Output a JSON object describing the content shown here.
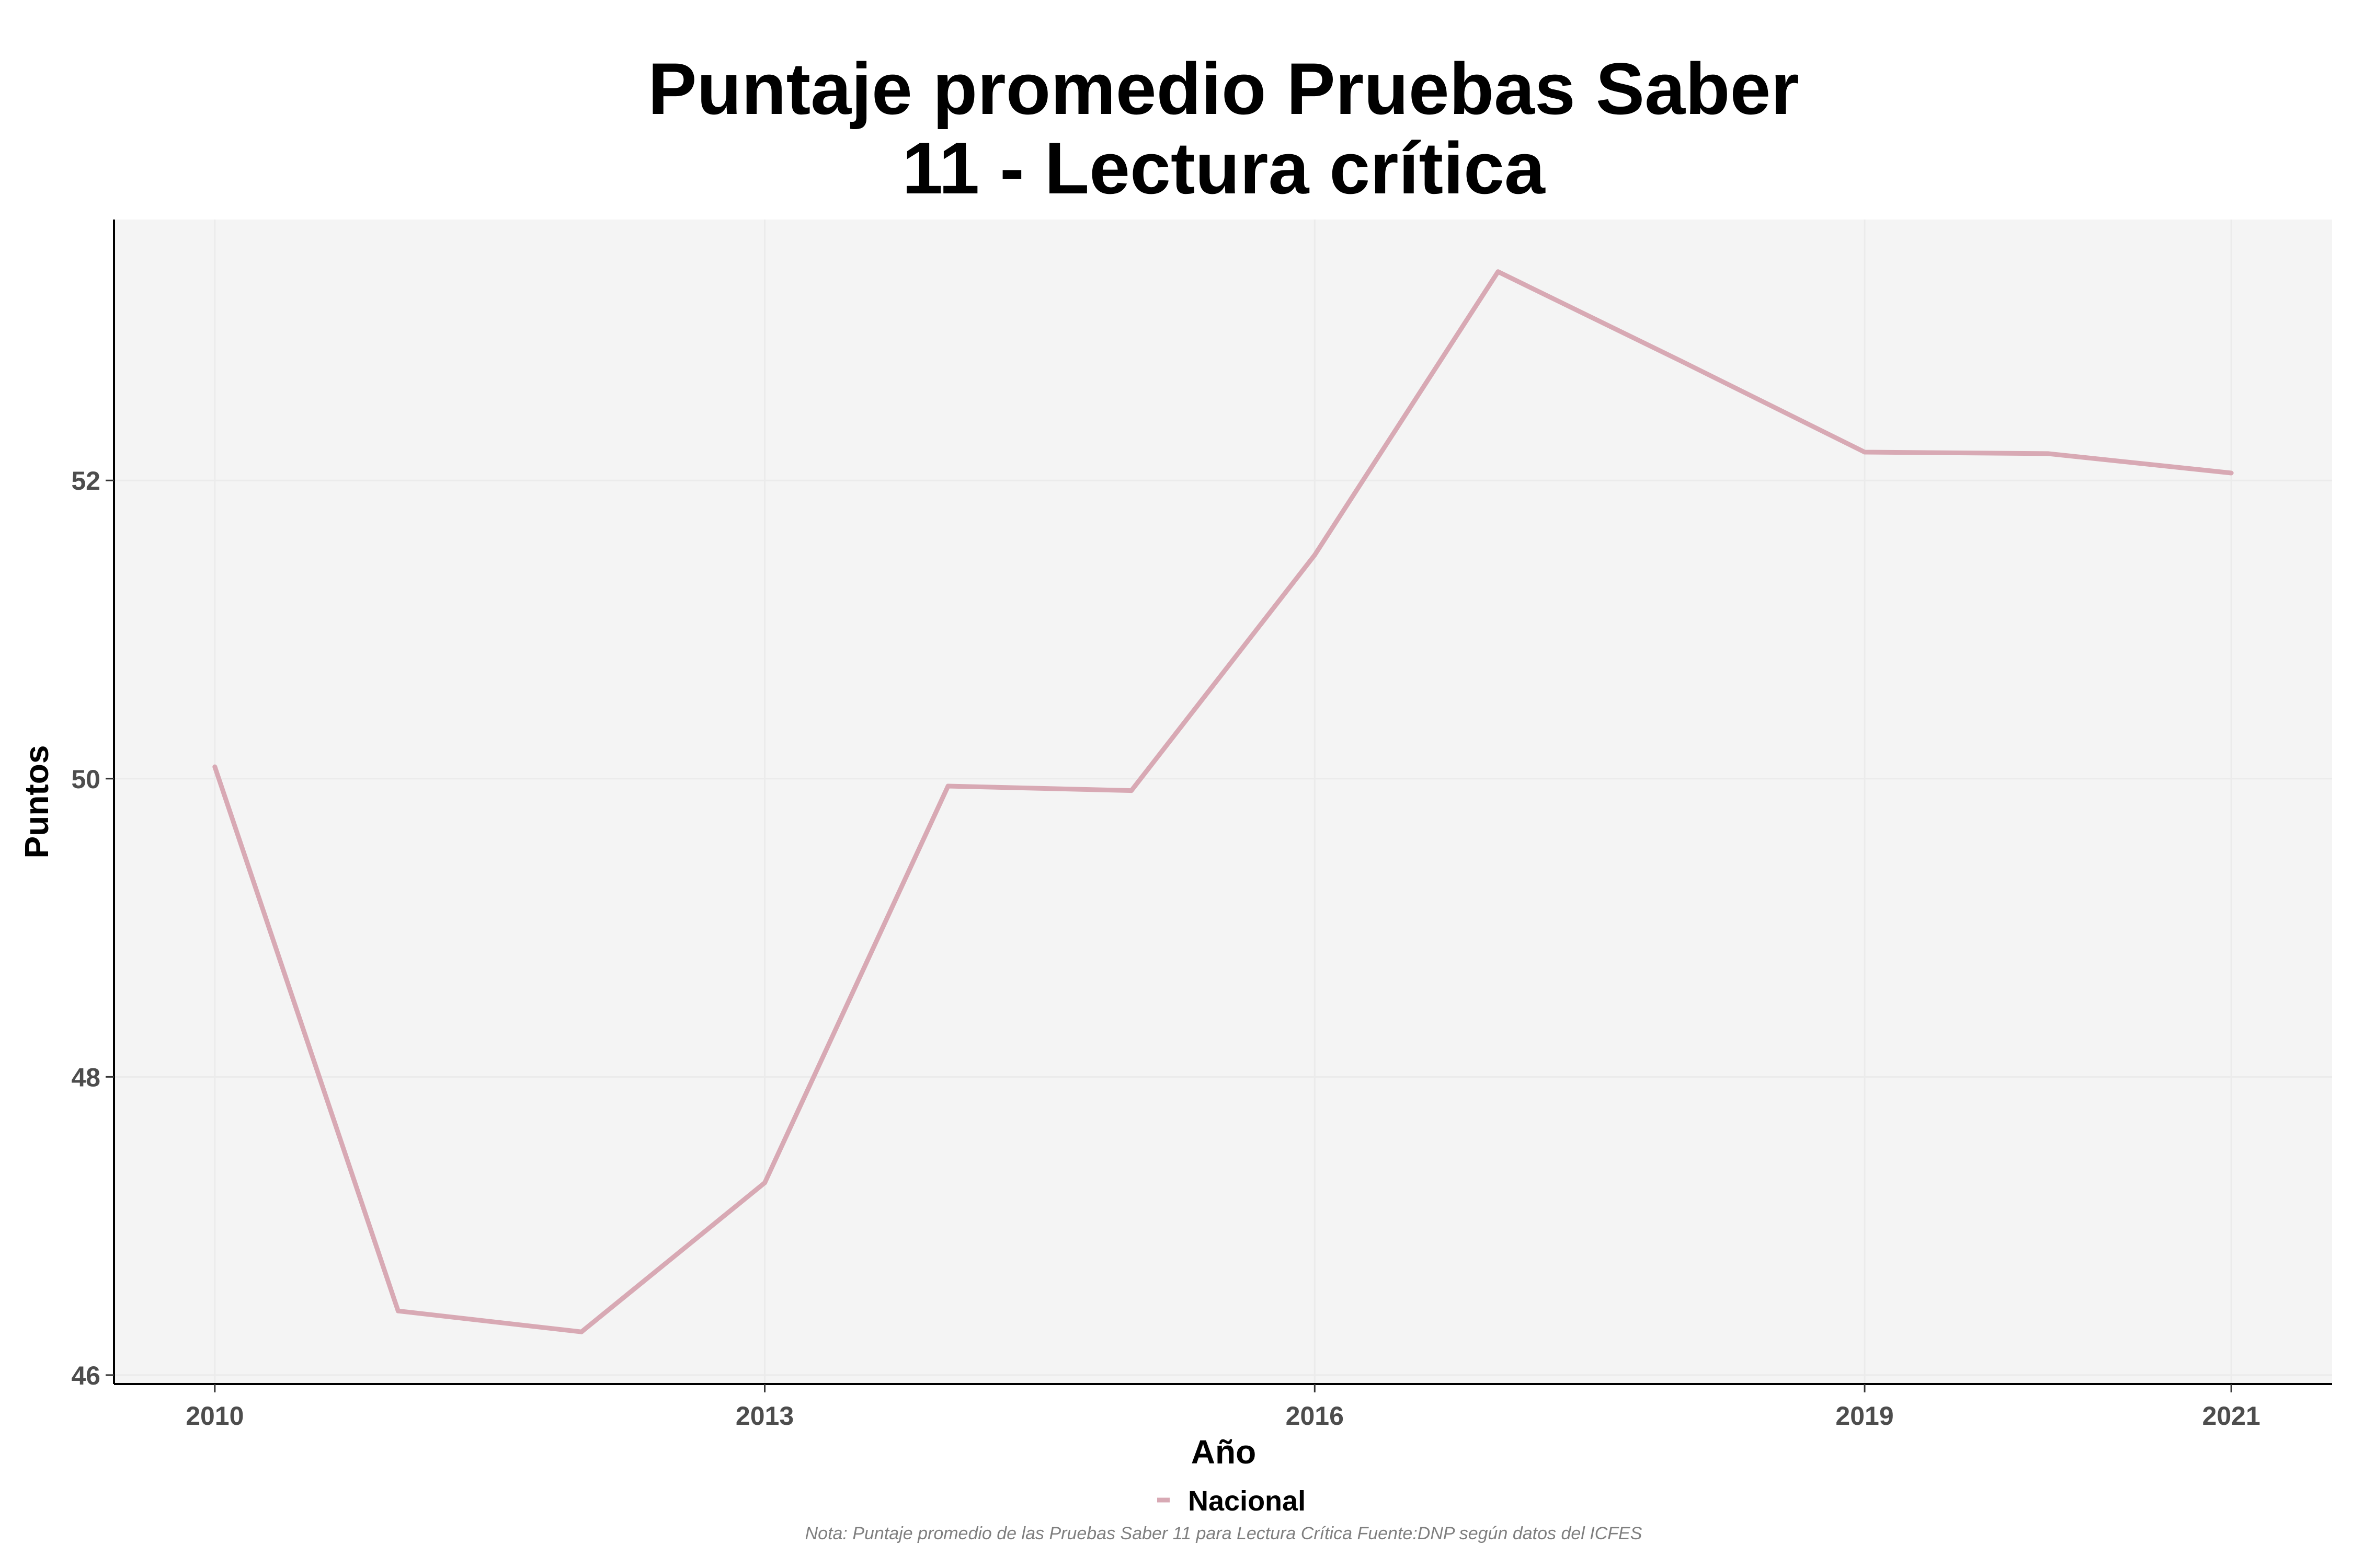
{
  "chart_data": {
    "type": "line",
    "title_lines": [
      "Puntaje promedio Pruebas Saber",
      "11 - Lectura crítica"
    ],
    "xlabel": "Año",
    "ylabel": "Puntos",
    "x_ticks": [
      2010,
      2013,
      2016,
      2019,
      2021
    ],
    "y_ticks": [
      46,
      48,
      50,
      52
    ],
    "xlim": [
      2009.45,
      2021.55
    ],
    "ylim": [
      45.94,
      53.75
    ],
    "grid": true,
    "legend_position": "bottom",
    "series": [
      {
        "name": "Nacional",
        "color": "#d8a9b4",
        "x": [
          2010,
          2011,
          2012,
          2013,
          2014,
          2015,
          2016,
          2017,
          2018,
          2019,
          2020,
          2021
        ],
        "values": [
          50.08,
          46.43,
          46.29,
          47.29,
          49.95,
          49.92,
          51.5,
          53.4,
          52.8,
          52.19,
          52.18,
          52.05
        ]
      }
    ],
    "note": "Nota: Puntaje promedio de las Pruebas Saber 11 para Lectura Crítica Fuente:DNP según datos del ICFES"
  }
}
